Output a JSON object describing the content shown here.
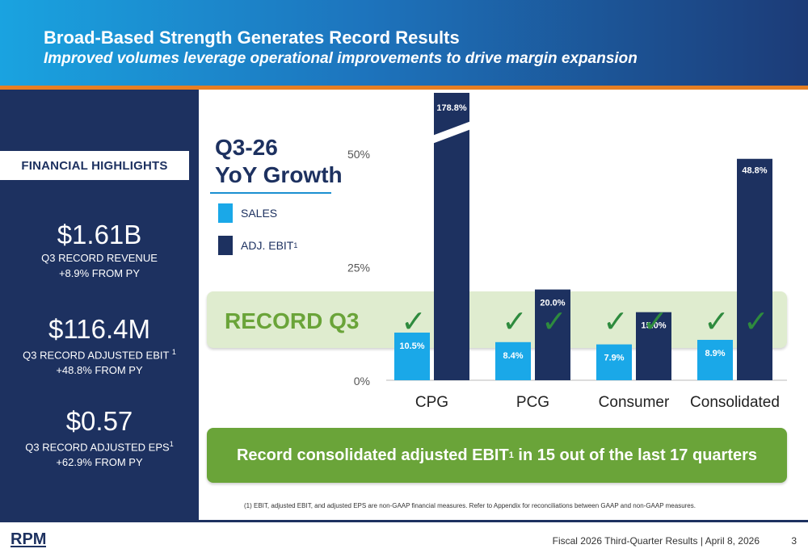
{
  "header": {
    "title": "Broad-Based Strength Generates Record Results",
    "subtitle": "Improved volumes leverage operational improvements to drive margin expansion"
  },
  "left_panel": {
    "tab_label": "FINANCIAL HIGHLIGHTS",
    "metrics": [
      {
        "value": "$1.61B",
        "line1": "Q3 RECORD REVENUE",
        "line1_sup": "",
        "line2": "+8.9% FROM PY"
      },
      {
        "value": "$116.4M",
        "line1": "Q3 RECORD ADJUSTED EBIT",
        "line1_sup": "1",
        "line2": "+48.8% FROM PY"
      },
      {
        "value": "$0.57",
        "line1": "Q3 RECORD ADJUSTED EPS",
        "line1_sup": "1",
        "line2": "+62.9% FROM PY"
      }
    ]
  },
  "chart_title": {
    "line1": "Q3-26",
    "line2": "YoY Growth"
  },
  "legend": {
    "sales": "SALES",
    "ebit": "ADJ. EBIT",
    "ebit_sup": "1"
  },
  "record_label": "RECORD Q3",
  "check_glyph": "✓",
  "chart_data": {
    "type": "bar",
    "title": "Q3-26 YoY Growth",
    "categories": [
      "CPG",
      "PCG",
      "Consumer",
      "Consolidated"
    ],
    "series": [
      {
        "name": "SALES",
        "color": "#1aa8e8",
        "values": [
          10.5,
          8.4,
          7.9,
          8.9
        ],
        "labels": [
          "10.5%",
          "8.4%",
          "7.9%",
          "8.9%"
        ]
      },
      {
        "name": "ADJ. EBIT",
        "color": "#1d3160",
        "values": [
          178.8,
          20.0,
          15.0,
          48.8
        ],
        "labels": [
          "178.8%",
          "20.0%",
          "15.0%",
          "48.8%"
        ]
      }
    ],
    "yticks": [
      {
        "value": 0,
        "label": "0%"
      },
      {
        "value": 25,
        "label": "25%"
      },
      {
        "value": 50,
        "label": "50%"
      }
    ],
    "ylim": [
      0,
      50
    ],
    "axis_break": true,
    "record_checks": {
      "SALES": [
        true,
        true,
        true,
        true
      ],
      "ADJ. EBIT": [
        false,
        true,
        true,
        true
      ]
    }
  },
  "banner": {
    "text_pre": "Record consolidated adjusted EBIT",
    "sup": "1",
    "text_post": " in 15 out of the last 17 quarters"
  },
  "footnote": "(1)    EBIT, adjusted EBIT, and adjusted EPS are non-GAAP financial measures. Refer to Appendix for reconciliations between GAAP and non-GAAP measures.",
  "footer": {
    "text": "Fiscal 2026 Third-Quarter Results | April 8, 2026",
    "page": "3",
    "logo_text": "RPM"
  },
  "colors": {
    "navy": "#1d3160",
    "cyan": "#1aa8e8",
    "green": "#6aa439",
    "orange": "#e67e22"
  }
}
